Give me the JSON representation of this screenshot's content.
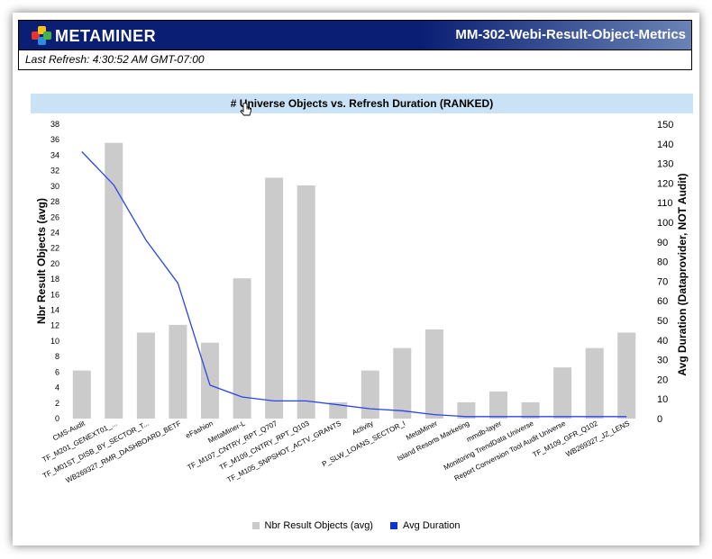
{
  "header": {
    "logo_text": "METAMINER",
    "report_title": "MM-302-Webi-Result-Object-Metrics"
  },
  "refresh": {
    "text": "Last Refresh: 4:30:52 AM GMT-07:00"
  },
  "colors": {
    "header_bg": "#0a1f74",
    "title_bar": "#c9e2f6",
    "bar": "#cbcbcb",
    "line": "#2b45ea"
  },
  "chart_data": {
    "type": "bar",
    "title": "# Universe Objects vs. Refresh Duration (RANKED)",
    "ylabel": "Nbr Result Objects (avg)",
    "y2label": "Avg Duration (Dataprovider, NOT Audit)",
    "ylim": [
      0,
      38
    ],
    "y2lim": [
      0,
      150
    ],
    "yticks": [
      "0",
      "2",
      "4",
      "6",
      "8",
      "10",
      "12",
      "14",
      "16",
      "18",
      "20",
      "22",
      "24",
      "26",
      "28",
      "30",
      "32",
      "34",
      "36",
      "38"
    ],
    "y2ticks": [
      "0",
      "10",
      "20",
      "30",
      "40",
      "50",
      "60",
      "70",
      "80",
      "90",
      "100",
      "110",
      "120",
      "130",
      "140",
      "150"
    ],
    "grid": false,
    "legend_position": "bottom",
    "categories": [
      "CMS-Audit",
      "TF_M201_GENEXT01_...",
      "TF_M01ST_DISB_BY_SECTOR_T...",
      "WB269327_RMR_DASHBOARD_BETF",
      "eFashion",
      "MetaMiner-L",
      "TF_M107_CNTRY_RPT_Q707",
      "TF_M109_CNTRY_RPT_Q103",
      "TF_M105_SNPSHOT_ACTV_GRANTS",
      "Activity",
      "P_SLW_LOANS_SECTOR_I",
      "MetaMiner",
      "Island Resorts Marketing",
      "mmdb-layer",
      "Monitoring TrendData Universe",
      "Report Conversion Tool Audit Universe",
      "TF_M109_GFR_Q102",
      "WB269327_JZ_LENS"
    ],
    "series": [
      {
        "name": "Nbr Result Objects (avg)",
        "type": "bar",
        "axis": "left",
        "values": [
          6.2,
          35.6,
          11.1,
          12.1,
          9.8,
          18.1,
          31.1,
          30.1,
          2.1,
          6.2,
          9.1,
          11.5,
          2.1,
          3.5,
          2.1,
          6.6,
          9.1,
          11.1
        ]
      },
      {
        "name": "Avg Duration",
        "type": "line",
        "axis": "right",
        "values": [
          136,
          119,
          91,
          69,
          17,
          11,
          9,
          9,
          7,
          5,
          4,
          2,
          1,
          1,
          1,
          1,
          1,
          1
        ]
      }
    ]
  },
  "legend": {
    "bars_label": "Nbr Result Objects (avg)",
    "line_label": "Avg Duration"
  }
}
